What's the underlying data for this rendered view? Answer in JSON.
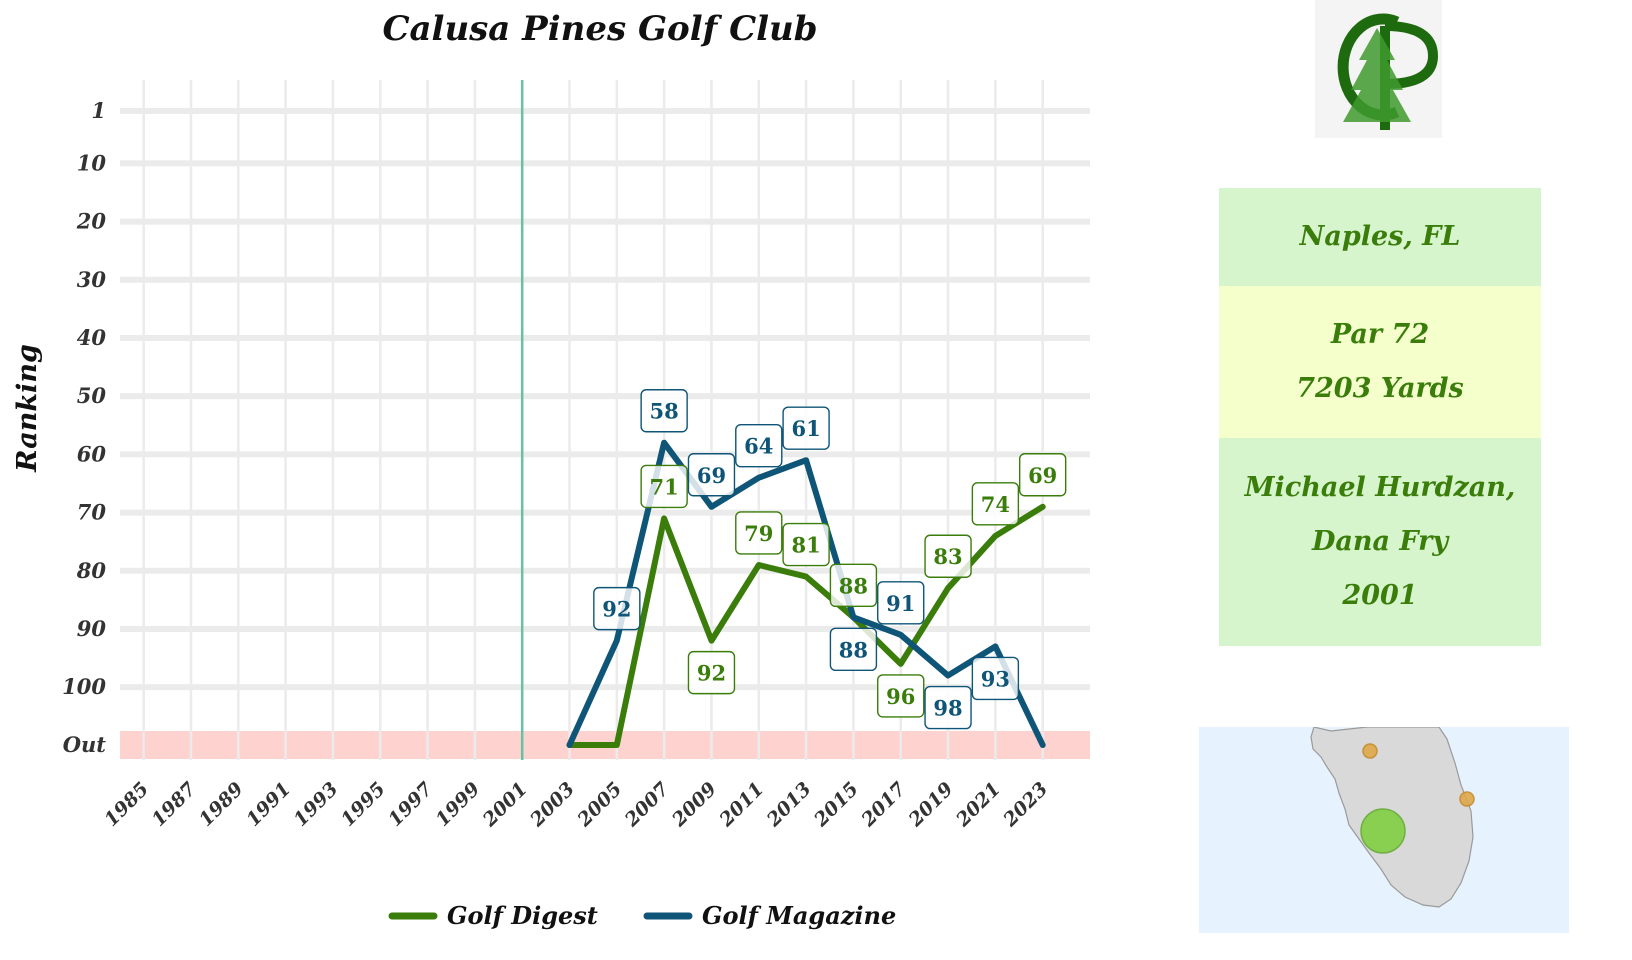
{
  "chart_data": {
    "type": "line",
    "title": "Calusa Pines Golf Club",
    "ylabel": "Ranking",
    "xlabel": "",
    "x_ticks": [
      "1985",
      "1987",
      "1989",
      "1991",
      "1993",
      "1995",
      "1997",
      "1999",
      "2001",
      "2003",
      "2005",
      "2007",
      "2009",
      "2011",
      "2013",
      "2015",
      "2017",
      "2019",
      "2021",
      "2023"
    ],
    "xlim": [
      1984,
      2025
    ],
    "y_ticks": [
      "1",
      "10",
      "20",
      "30",
      "40",
      "50",
      "60",
      "70",
      "80",
      "90",
      "100",
      "Out"
    ],
    "y_reversed": true,
    "out_value": "Out",
    "opened_year": 2001,
    "grid": true,
    "legend_position": "bottom",
    "series": [
      {
        "name": "Golf Digest",
        "color": "#3a7d0a",
        "points": [
          {
            "x": 2003,
            "y": "Out"
          },
          {
            "x": 2005,
            "y": "Out"
          },
          {
            "x": 2007,
            "y": 71,
            "label": "71"
          },
          {
            "x": 2009,
            "y": 92,
            "label": "92"
          },
          {
            "x": 2011,
            "y": 79,
            "label": "79"
          },
          {
            "x": 2013,
            "y": 81,
            "label": "81"
          },
          {
            "x": 2015,
            "y": 88,
            "label": "88"
          },
          {
            "x": 2017,
            "y": 96,
            "label": "96"
          },
          {
            "x": 2019,
            "y": 83,
            "label": "83"
          },
          {
            "x": 2021,
            "y": 74,
            "label": "74"
          },
          {
            "x": 2023,
            "y": 69,
            "label": "69"
          }
        ]
      },
      {
        "name": "Golf Magazine",
        "color": "#0e5578",
        "points": [
          {
            "x": 2003,
            "y": "Out"
          },
          {
            "x": 2005,
            "y": 92,
            "label": "92"
          },
          {
            "x": 2007,
            "y": 58,
            "label": "58"
          },
          {
            "x": 2009,
            "y": 69,
            "label": "69"
          },
          {
            "x": 2011,
            "y": 64,
            "label": "64"
          },
          {
            "x": 2013,
            "y": 61,
            "label": "61"
          },
          {
            "x": 2015,
            "y": 88,
            "label": "88"
          },
          {
            "x": 2017,
            "y": 91,
            "label": "91"
          },
          {
            "x": 2019,
            "y": 98,
            "label": "98"
          },
          {
            "x": 2021,
            "y": 93,
            "label": "93"
          },
          {
            "x": 2023,
            "y": "Out"
          }
        ]
      }
    ],
    "colors": {
      "out_band": "#fdd2cf",
      "grid": "#ebebeb",
      "opened_line": "#66c2a5"
    }
  },
  "logo": {
    "letters": "CP",
    "icon": "pine-tree-icon",
    "color": "#1e6b0f"
  },
  "info": {
    "location": "Naples, FL",
    "par": "Par 72",
    "yards": "7203 Yards",
    "architect_line1": "Michael Hurdzan,",
    "architect_line2": "Dana Fry",
    "year": "2001"
  },
  "map": {
    "icon": "florida-map-icon",
    "colors": {
      "background": "#e6f2fd",
      "land": "#d9d9d9",
      "other_course": "#e0a84a",
      "this_course": "#7ccf3a"
    }
  }
}
